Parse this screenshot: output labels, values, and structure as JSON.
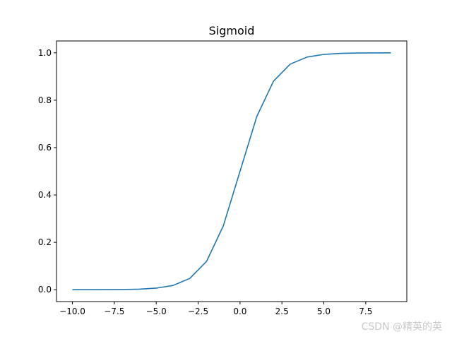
{
  "chart_data": {
    "type": "line",
    "title": "Sigmoid",
    "xlabel": "",
    "ylabel": "",
    "xlim": [
      -10.95,
      9.95
    ],
    "ylim": [
      -0.05,
      1.05
    ],
    "x_ticks": [
      -10.0,
      -7.5,
      -5.0,
      -2.5,
      0.0,
      2.5,
      5.0,
      7.5
    ],
    "x_tick_labels": [
      "−10.0",
      "−7.5",
      "−5.0",
      "−2.5",
      "0.0",
      "2.5",
      "5.0",
      "7.5"
    ],
    "y_ticks": [
      0.0,
      0.2,
      0.4,
      0.6,
      0.8,
      1.0
    ],
    "y_tick_labels": [
      "0.0",
      "0.2",
      "0.4",
      "0.6",
      "0.8",
      "1.0"
    ],
    "grid": false,
    "series": [
      {
        "color": "#1f77b4",
        "x": [
          -10,
          -9,
          -8,
          -7,
          -6,
          -5,
          -4,
          -3,
          -2,
          -1,
          0,
          1,
          2,
          3,
          4,
          5,
          6,
          7,
          8,
          9
        ],
        "y": [
          4.54e-05,
          0.0001234,
          0.0003354,
          0.000911,
          0.002473,
          0.006693,
          0.017986,
          0.047426,
          0.119203,
          0.268941,
          0.5,
          0.731059,
          0.880797,
          0.952574,
          0.982014,
          0.993307,
          0.997527,
          0.999089,
          0.999665,
          0.999877
        ]
      }
    ]
  },
  "watermark": "CSDN @精英的英"
}
